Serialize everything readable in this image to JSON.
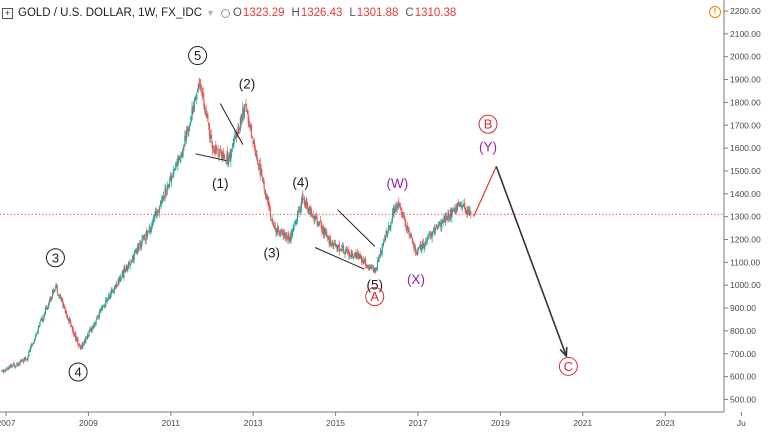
{
  "header": {
    "title": "GOLD / U.S. DOLLAR, 1W, FX_IDC",
    "open_key": "O",
    "open": "1323.29",
    "high_key": "H",
    "high": "1326.43",
    "low_key": "L",
    "low": "1301.88",
    "close_key": "C",
    "close": "1310.38"
  },
  "colors": {
    "up": "#26a69a",
    "down": "#ef5350",
    "axis": "#4a4a4a",
    "price_line": "#e53935",
    "wave_black": "#1e1e1e",
    "wave_purple": "#8e24aa",
    "wave_red": "#d32f2f"
  },
  "icons": {
    "add": "plus-box-icon",
    "menu": "chevron-down-icon",
    "status": "circle-icon",
    "alert": "alert-icon"
  },
  "chart_data": {
    "type": "candlestick",
    "price_axis": {
      "ticks": [
        "2200.00",
        "2100.00",
        "2000.00",
        "1900.00",
        "1800.00",
        "1700.00",
        "1600.00",
        "1500.00",
        "1400.00",
        "1300.00",
        "1200.00",
        "1100.00",
        "1000.00",
        "900.00",
        "800.00",
        "700.00",
        "600.00",
        "500.00"
      ]
    },
    "time_axis": {
      "ticks": [
        "2007",
        "2009",
        "2011",
        "2013",
        "2015",
        "2017",
        "2019",
        "2021",
        "2023",
        "Ju"
      ]
    },
    "current_price": 1310.38,
    "price_path": [
      {
        "x": 2006.9,
        "y": 620
      },
      {
        "x": 2007.5,
        "y": 680
      },
      {
        "x": 2008.2,
        "y": 1000
      },
      {
        "x": 2008.8,
        "y": 720
      },
      {
        "x": 2009.5,
        "y": 950
      },
      {
        "x": 2010.5,
        "y": 1250
      },
      {
        "x": 2011.3,
        "y": 1600
      },
      {
        "x": 2011.7,
        "y": 1900
      },
      {
        "x": 2012.0,
        "y": 1600
      },
      {
        "x": 2012.4,
        "y": 1550
      },
      {
        "x": 2012.8,
        "y": 1780
      },
      {
        "x": 2013.5,
        "y": 1250
      },
      {
        "x": 2013.9,
        "y": 1200
      },
      {
        "x": 2014.2,
        "y": 1380
      },
      {
        "x": 2014.9,
        "y": 1180
      },
      {
        "x": 2015.6,
        "y": 1120
      },
      {
        "x": 2015.95,
        "y": 1060
      },
      {
        "x": 2016.5,
        "y": 1370
      },
      {
        "x": 2016.95,
        "y": 1140
      },
      {
        "x": 2017.6,
        "y": 1280
      },
      {
        "x": 2018.0,
        "y": 1350
      },
      {
        "x": 2018.3,
        "y": 1310
      }
    ],
    "projection": [
      {
        "x": 2018.35,
        "y": 1300
      },
      {
        "x": 2018.9,
        "y": 1520
      },
      {
        "x": 2020.6,
        "y": 690
      }
    ],
    "labels": [
      {
        "text": "5",
        "x": 2011.65,
        "y": 2005,
        "circled": true,
        "color": "black"
      },
      {
        "text": "(2)",
        "x": 2012.85,
        "y": 1880,
        "circled": false,
        "color": "black"
      },
      {
        "text": "(1)",
        "x": 2012.2,
        "y": 1445,
        "circled": false,
        "color": "black"
      },
      {
        "text": "(4)",
        "x": 2014.15,
        "y": 1450,
        "circled": false,
        "color": "black"
      },
      {
        "text": "(3)",
        "x": 2013.45,
        "y": 1140,
        "circled": false,
        "color": "black"
      },
      {
        "text": "(W)",
        "x": 2016.5,
        "y": 1445,
        "circled": false,
        "color": "purple"
      },
      {
        "text": "(X)",
        "x": 2016.95,
        "y": 1025,
        "circled": false,
        "color": "purple"
      },
      {
        "text": "(5)",
        "x": 2015.95,
        "y": 1000,
        "circled": false,
        "color": "black"
      },
      {
        "text": "A",
        "x": 2015.95,
        "y": 950,
        "circled": true,
        "color": "red"
      },
      {
        "text": "B",
        "x": 2018.7,
        "y": 1705,
        "circled": true,
        "color": "red"
      },
      {
        "text": "(Y)",
        "x": 2018.7,
        "y": 1605,
        "circled": false,
        "color": "purple"
      },
      {
        "text": "3",
        "x": 2008.2,
        "y": 1120,
        "circled": true,
        "color": "black"
      },
      {
        "text": "4",
        "x": 2008.75,
        "y": 620,
        "circled": true,
        "color": "black"
      },
      {
        "text": "C",
        "x": 2020.65,
        "y": 645,
        "circled": true,
        "color": "red"
      }
    ],
    "trendlines": [
      [
        {
          "x": 2011.6,
          "y": 1575
        },
        {
          "x": 2012.35,
          "y": 1545
        }
      ],
      [
        {
          "x": 2012.2,
          "y": 1795
        },
        {
          "x": 2012.75,
          "y": 1615
        }
      ],
      [
        {
          "x": 2015.05,
          "y": 1330
        },
        {
          "x": 2015.95,
          "y": 1170
        }
      ],
      [
        {
          "x": 2014.5,
          "y": 1165
        },
        {
          "x": 2015.7,
          "y": 1070
        }
      ]
    ]
  }
}
